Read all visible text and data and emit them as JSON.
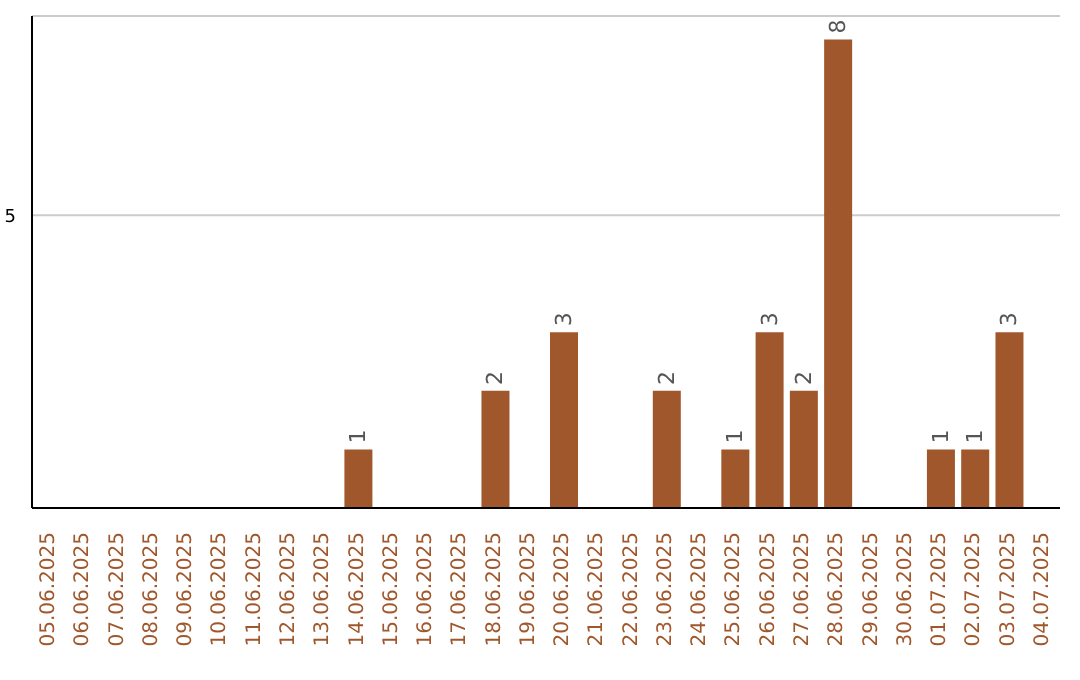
{
  "chart_data": {
    "type": "bar",
    "categories": [
      "05.06.2025",
      "06.06.2025",
      "07.06.2025",
      "08.06.2025",
      "09.06.2025",
      "10.06.2025",
      "11.06.2025",
      "12.06.2025",
      "13.06.2025",
      "14.06.2025",
      "15.06.2025",
      "16.06.2025",
      "17.06.2025",
      "18.06.2025",
      "19.06.2025",
      "20.06.2025",
      "21.06.2025",
      "22.06.2025",
      "23.06.2025",
      "24.06.2025",
      "25.06.2025",
      "26.06.2025",
      "27.06.2025",
      "28.06.2025",
      "29.06.2025",
      "30.06.2025",
      "01.07.2025",
      "02.07.2025",
      "03.07.2025",
      "04.07.2025"
    ],
    "values": [
      0,
      0,
      0,
      0,
      0,
      0,
      0,
      0,
      0,
      1,
      0,
      0,
      0,
      2,
      0,
      3,
      0,
      0,
      2,
      0,
      1,
      3,
      2,
      8,
      0,
      0,
      1,
      1,
      3,
      0
    ],
    "value_labels": [
      null,
      null,
      null,
      null,
      null,
      null,
      null,
      null,
      null,
      "1",
      null,
      null,
      null,
      "2",
      null,
      "3",
      null,
      null,
      "2",
      null,
      "1",
      "3",
      "2",
      "8",
      null,
      null,
      "1",
      "1",
      "3",
      null
    ],
    "color": "#a0572b",
    "ylim": [
      0,
      8.4
    ],
    "yticks": [
      5
    ],
    "grid": "y"
  }
}
